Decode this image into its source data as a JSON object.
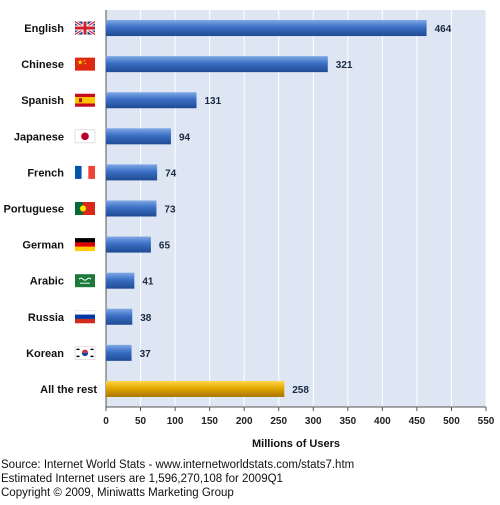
{
  "chart_data": {
    "type": "bar",
    "orientation": "horizontal",
    "categories": [
      "English",
      "Chinese",
      "Spanish",
      "Japanese",
      "French",
      "Portuguese",
      "German",
      "Arabic",
      "Russia",
      "Korean",
      "All the rest"
    ],
    "values": [
      464,
      321,
      131,
      94,
      74,
      73,
      65,
      41,
      38,
      37,
      258
    ],
    "flag_icons": [
      "uk-flag-icon",
      "china-flag-icon",
      "spain-flag-icon",
      "japan-flag-icon",
      "france-flag-icon",
      "portugal-flag-icon",
      "germany-flag-icon",
      "saudi-arabia-flag-icon",
      "russia-flag-icon",
      "south-korea-flag-icon",
      ""
    ],
    "xlabel": "Millions of Users",
    "ylabel": "",
    "xlim": [
      0,
      550
    ],
    "xticks": [
      0,
      50,
      100,
      150,
      200,
      250,
      300,
      350,
      400,
      450,
      500,
      550
    ],
    "grid": true,
    "colors": {
      "bar": "#3a6fc4",
      "bar_highlight": "#e3a800",
      "plot_background": "#dde6f2",
      "grid": "#ffffff"
    }
  },
  "footer": {
    "source": "Source: Internet World Stats - www.internetworldstats.com/stats7.htm",
    "estimate": "Estimated Internet users are 1,596,270,108 for 2009Q1",
    "copyright": "Copyright © 2009, Miniwatts Marketing Group"
  }
}
